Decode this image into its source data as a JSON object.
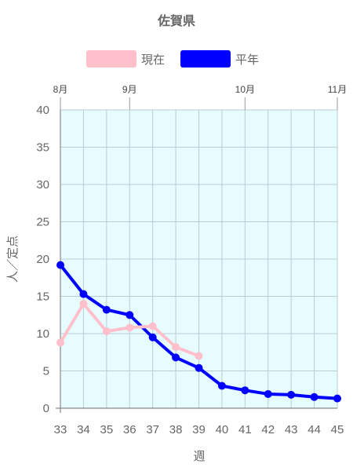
{
  "chart_data": {
    "type": "line",
    "title": "佐賀県",
    "xlabel": "週",
    "ylabel": "人／定点",
    "ylim": [
      0,
      40
    ],
    "yticks": [
      0,
      5,
      10,
      15,
      20,
      25,
      30,
      35,
      40
    ],
    "x": [
      33,
      34,
      35,
      36,
      37,
      38,
      39,
      40,
      41,
      42,
      43,
      44,
      45
    ],
    "xlim": [
      33,
      45
    ],
    "months": [
      {
        "label": "8月",
        "x": 33
      },
      {
        "label": "9月",
        "x": 36
      },
      {
        "label": "10月",
        "x": 41
      },
      {
        "label": "11月",
        "x": 45
      }
    ],
    "plot_background": "#e6fcfe",
    "grid": true,
    "legend_position": "top",
    "series": [
      {
        "name": "現在",
        "color": "#ffc0cb",
        "x": [
          33,
          34,
          35,
          36,
          37,
          38,
          39
        ],
        "values": [
          8.8,
          14.0,
          10.3,
          10.8,
          11.0,
          8.2,
          7.0
        ]
      },
      {
        "name": "平年",
        "color": "#0000ff",
        "x": [
          33,
          34,
          35,
          36,
          37,
          38,
          39,
          40,
          41,
          42,
          43,
          44,
          45
        ],
        "values": [
          19.2,
          15.3,
          13.2,
          12.5,
          9.5,
          6.8,
          5.4,
          3.0,
          2.4,
          1.9,
          1.8,
          1.5,
          1.3
        ]
      }
    ]
  }
}
